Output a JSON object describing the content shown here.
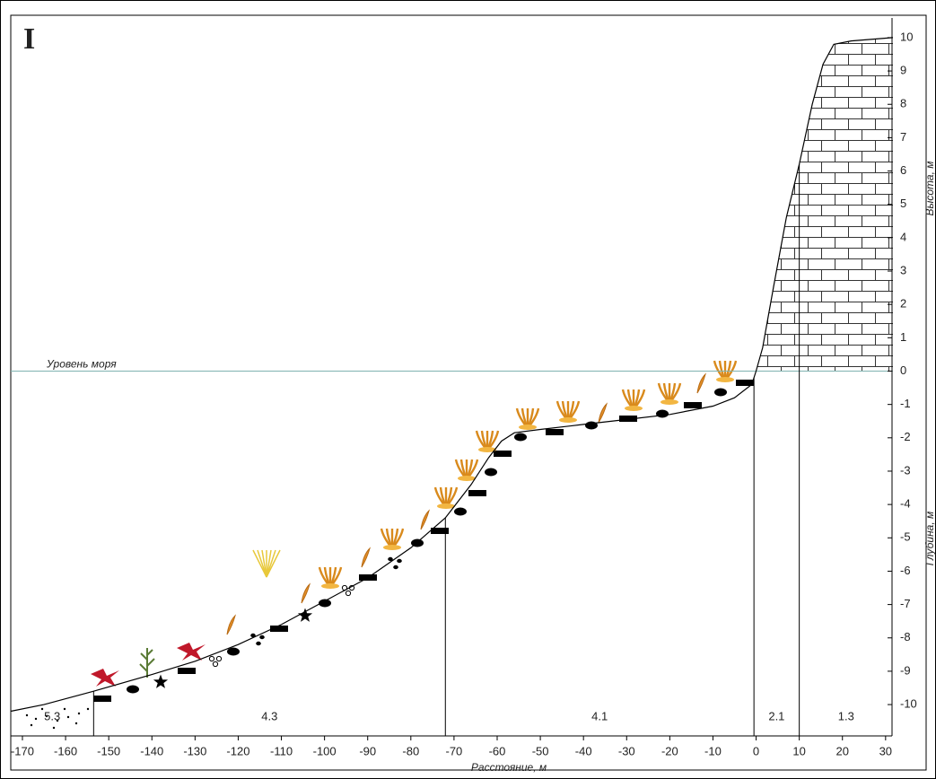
{
  "chart_data": {
    "type": "line",
    "title": "I",
    "x_label": "Расстояние, м",
    "y_label_top": "Высота, м",
    "y_label_bottom": "Глубина, м",
    "x": [
      -172.7,
      -165,
      -153.5,
      -140,
      -130,
      -120,
      -110,
      -100,
      -90,
      -80,
      -72,
      -66,
      -62,
      -59,
      -56,
      -50,
      -40,
      -30,
      -20,
      -10,
      -5,
      -1,
      0,
      1.5,
      4,
      7,
      10,
      13,
      15.5,
      18,
      22,
      31.7
    ],
    "values": [
      -10.2,
      -10.0,
      -9.6,
      -9.1,
      -8.7,
      -8.2,
      -7.6,
      -6.9,
      -6.2,
      -5.3,
      -4.4,
      -3.4,
      -2.6,
      -2.1,
      -1.85,
      -1.75,
      -1.6,
      -1.45,
      -1.3,
      -1.05,
      -0.8,
      -0.4,
      0,
      0.7,
      2.5,
      4.6,
      6.2,
      8.0,
      9.2,
      9.8,
      9.9,
      10.0
    ],
    "color": "#000000",
    "xlim": [
      -172.7,
      31.7
    ],
    "ylim": [
      -10.94,
      10.59
    ],
    "xticks": [
      -170,
      -160,
      -150,
      -140,
      -130,
      -120,
      -110,
      -100,
      -90,
      -80,
      -70,
      -60,
      -50,
      -40,
      -30,
      -20,
      -10,
      0,
      10,
      20,
      30
    ],
    "yticks": [
      -10,
      -9,
      -8,
      -7,
      -6,
      -5,
      -4,
      -3,
      -2,
      -1,
      0,
      1,
      2,
      3,
      4,
      5,
      6,
      7,
      8,
      9,
      10
    ],
    "reference_line": {
      "label": "Уровень моря",
      "y": 0,
      "color": "#7fb3b0"
    },
    "zone_bounds": [
      -153.5,
      -72,
      -0.5,
      10
    ],
    "zone_labels": [
      "5.3",
      "4.3",
      "4.1",
      "2.1",
      "1.3"
    ]
  }
}
